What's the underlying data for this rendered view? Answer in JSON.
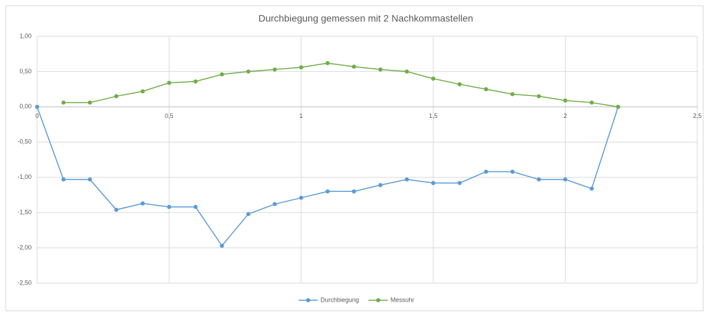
{
  "chart_data": {
    "type": "line",
    "title": "Durchbiegung gemessen mit 2 Nachkommastellen",
    "xlim": [
      0,
      2.5
    ],
    "xticks": [
      0,
      {
        "value": 0.5,
        "label": "0,5"
      },
      1,
      {
        "value": 1.5,
        "label": "1,5"
      },
      2,
      {
        "value": 2.5,
        "label": "2,5"
      }
    ],
    "ylim": [
      -2.5,
      1
    ],
    "yticks": [
      {
        "value": 1,
        "label": "1,00"
      },
      {
        "value": 0.5,
        "label": "0,50"
      },
      {
        "value": 0,
        "label": "0,00"
      },
      {
        "value": -0.5,
        "label": "-0,50"
      },
      {
        "value": -1,
        "label": "-1,00"
      },
      {
        "value": -1.5,
        "label": "-1,50"
      },
      {
        "value": -2,
        "label": "-2,00"
      },
      {
        "value": -2.5,
        "label": "-2,50"
      }
    ],
    "grid": true,
    "legend": "bottom",
    "series": [
      {
        "name": "Durchbiegung",
        "color": "#5b9bd5",
        "x": [
          0,
          0.1,
          0.2,
          0.3,
          0.4,
          0.5,
          0.6,
          0.7,
          0.8,
          0.9,
          1.0,
          1.1,
          1.2,
          1.3,
          1.4,
          1.5,
          1.6,
          1.7,
          1.8,
          1.9,
          2.0,
          2.1,
          2.2
        ],
        "values": [
          0,
          -1.03,
          -1.03,
          -1.46,
          -1.37,
          -1.42,
          -1.42,
          -1.97,
          -1.52,
          -1.38,
          -1.29,
          -1.2,
          -1.2,
          -1.11,
          -1.03,
          -1.08,
          -1.08,
          -0.92,
          -0.92,
          -1.03,
          -1.03,
          -1.16,
          0
        ]
      },
      {
        "name": "Messuhr",
        "color": "#70ad47",
        "x": [
          0.1,
          0.2,
          0.3,
          0.4,
          0.5,
          0.6,
          0.7,
          0.8,
          0.9,
          1.0,
          1.1,
          1.2,
          1.3,
          1.4,
          1.5,
          1.6,
          1.7,
          1.8,
          1.9,
          2.0,
          2.1,
          2.2
        ],
        "values": [
          0.06,
          0.06,
          0.15,
          0.22,
          0.34,
          0.36,
          0.46,
          0.5,
          0.53,
          0.56,
          0.62,
          0.57,
          0.53,
          0.5,
          0.4,
          0.32,
          0.25,
          0.18,
          0.15,
          0.09,
          0.06,
          0
        ]
      }
    ]
  }
}
